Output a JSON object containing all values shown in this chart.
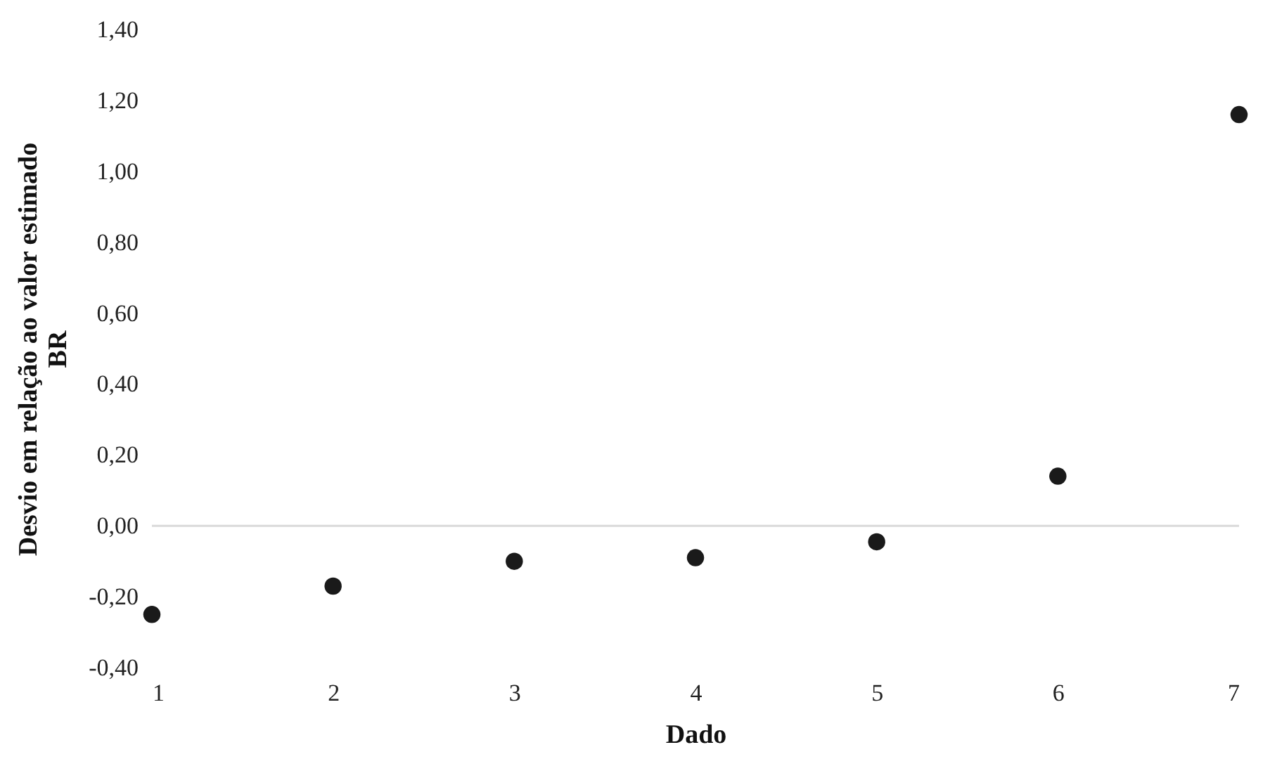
{
  "chart_data": {
    "type": "scatter",
    "xlabel": "Dado",
    "ylabel": "Desvio em relação ao valor estimado\nBR",
    "x": [
      1,
      2,
      3,
      4,
      5,
      6,
      7
    ],
    "series": [
      {
        "color": "#1a1a1a",
        "values": [
          -0.25,
          -0.17,
          -0.1,
          -0.09,
          -0.045,
          0.14,
          1.16
        ]
      }
    ],
    "xlim": [
      1,
      7
    ],
    "xticks": [
      1,
      2,
      3,
      4,
      5,
      6,
      7
    ],
    "ylim": [
      -0.4,
      1.4
    ],
    "yticks": [
      {
        "value": -0.4,
        "label": "-0,40"
      },
      {
        "value": -0.2,
        "label": "-0,20"
      },
      {
        "value": 0,
        "label": "0,00"
      },
      {
        "value": 0.2,
        "label": "0,20"
      },
      {
        "value": 0.4,
        "label": "0,40"
      },
      {
        "value": 0.6,
        "label": "0,60"
      },
      {
        "value": 0.8,
        "label": "0,80"
      },
      {
        "value": 1.0,
        "label": "1,00"
      },
      {
        "value": 1.2,
        "label": "1,20"
      },
      {
        "value": 1.4,
        "label": "1,40"
      }
    ],
    "ref_lines": [
      {
        "axis": "y",
        "value": 0,
        "color": "#d9d9d9"
      }
    ],
    "marker": "circle",
    "grid": false
  }
}
